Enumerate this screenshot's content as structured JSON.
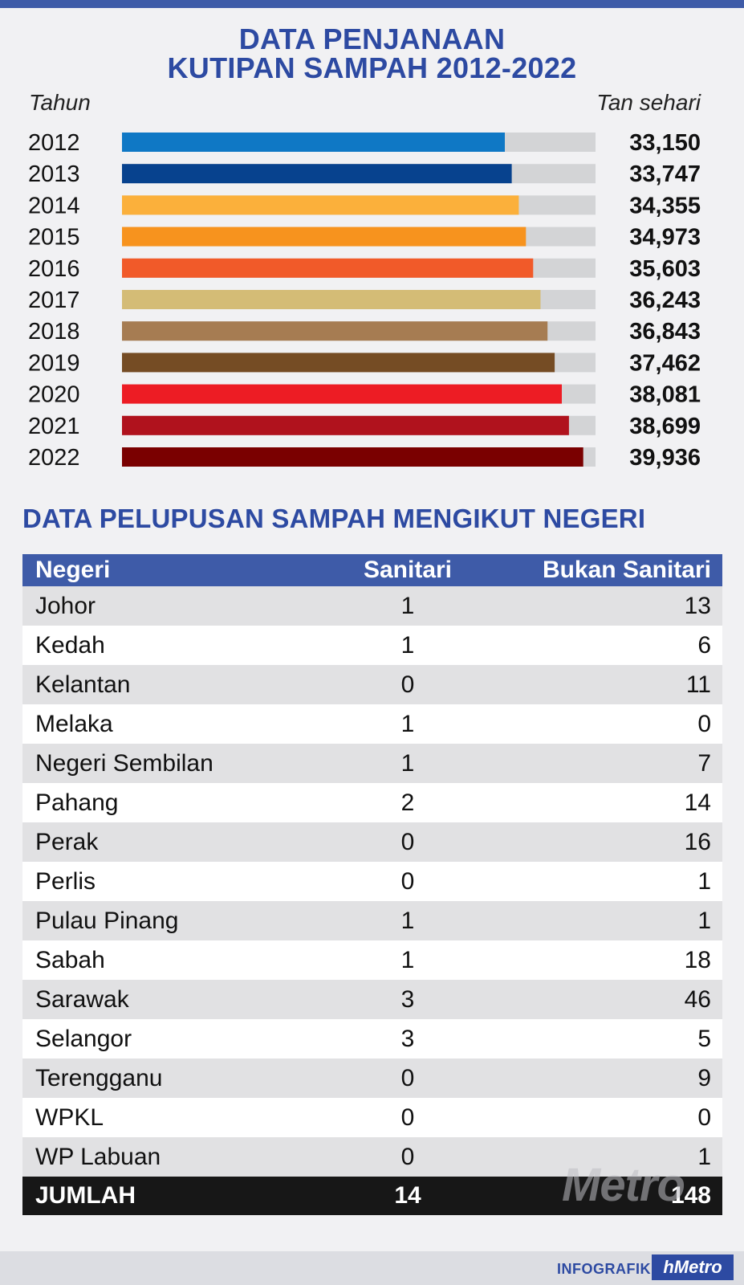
{
  "header": {
    "title_line1": "DATA PENJANAAN",
    "title_line2": "KUTIPAN SAMPAH 2012-2022"
  },
  "chart_data": {
    "type": "bar",
    "orientation": "horizontal",
    "title": "DATA PENJANAAN KUTIPAN SAMPAH 2012-2022",
    "xlabel": "Tan sehari",
    "ylabel": "Tahun",
    "categories": [
      "2012",
      "2013",
      "2014",
      "2015",
      "2016",
      "2017",
      "2018",
      "2019",
      "2020",
      "2021",
      "2022"
    ],
    "values": [
      33150,
      33747,
      34355,
      34973,
      35603,
      36243,
      36843,
      37462,
      38081,
      38699,
      39936
    ],
    "value_labels": [
      "33,150",
      "33,747",
      "34,355",
      "34,973",
      "35,603",
      "36,243",
      "36,843",
      "37,462",
      "38,081",
      "38,699",
      "39,936"
    ],
    "xlim": [
      0,
      41000
    ],
    "grid": false,
    "colors": [
      "#0f78c5",
      "#07428e",
      "#fbb03b",
      "#f7931e",
      "#f15a29",
      "#d4bc76",
      "#a67c52",
      "#754c24",
      "#ed1c24",
      "#b0121d",
      "#7a0000"
    ],
    "track_color": "#d3d4d6"
  },
  "table": {
    "title": "DATA PELUPUSAN SAMPAH MENGIKUT NEGERI",
    "headers": {
      "negeri": "Negeri",
      "sanitari": "Sanitari",
      "bukan_sanitari": "Bukan Sanitari"
    },
    "rows": [
      {
        "negeri": "Johor",
        "sanitari": "1",
        "bukan_sanitari": "13"
      },
      {
        "negeri": "Kedah",
        "sanitari": "1",
        "bukan_sanitari": "6"
      },
      {
        "negeri": "Kelantan",
        "sanitari": "0",
        "bukan_sanitari": "11"
      },
      {
        "negeri": "Melaka",
        "sanitari": "1",
        "bukan_sanitari": "0"
      },
      {
        "negeri": "Negeri Sembilan",
        "sanitari": "1",
        "bukan_sanitari": "7"
      },
      {
        "negeri": "Pahang",
        "sanitari": "2",
        "bukan_sanitari": "14"
      },
      {
        "negeri": "Perak",
        "sanitari": "0",
        "bukan_sanitari": "16"
      },
      {
        "negeri": "Perlis",
        "sanitari": "0",
        "bukan_sanitari": "1"
      },
      {
        "negeri": "Pulau Pinang",
        "sanitari": "1",
        "bukan_sanitari": "1"
      },
      {
        "negeri": "Sabah",
        "sanitari": "1",
        "bukan_sanitari": "18"
      },
      {
        "negeri": "Sarawak",
        "sanitari": "3",
        "bukan_sanitari": "46"
      },
      {
        "negeri": "Selangor",
        "sanitari": "3",
        "bukan_sanitari": "5"
      },
      {
        "negeri": "Terengganu",
        "sanitari": "0",
        "bukan_sanitari": "9"
      },
      {
        "negeri": "WPKL",
        "sanitari": "0",
        "bukan_sanitari": "0"
      },
      {
        "negeri": "WP Labuan",
        "sanitari": "0",
        "bukan_sanitari": "1"
      }
    ],
    "total": {
      "negeri": "JUMLAH",
      "sanitari": "14",
      "bukan_sanitari": "148"
    }
  },
  "branding": {
    "watermark": "Metro",
    "footer_label": "INFOGRAFIK",
    "footer_brand": "hMetro",
    "brand_color": "#2d4aa2"
  }
}
